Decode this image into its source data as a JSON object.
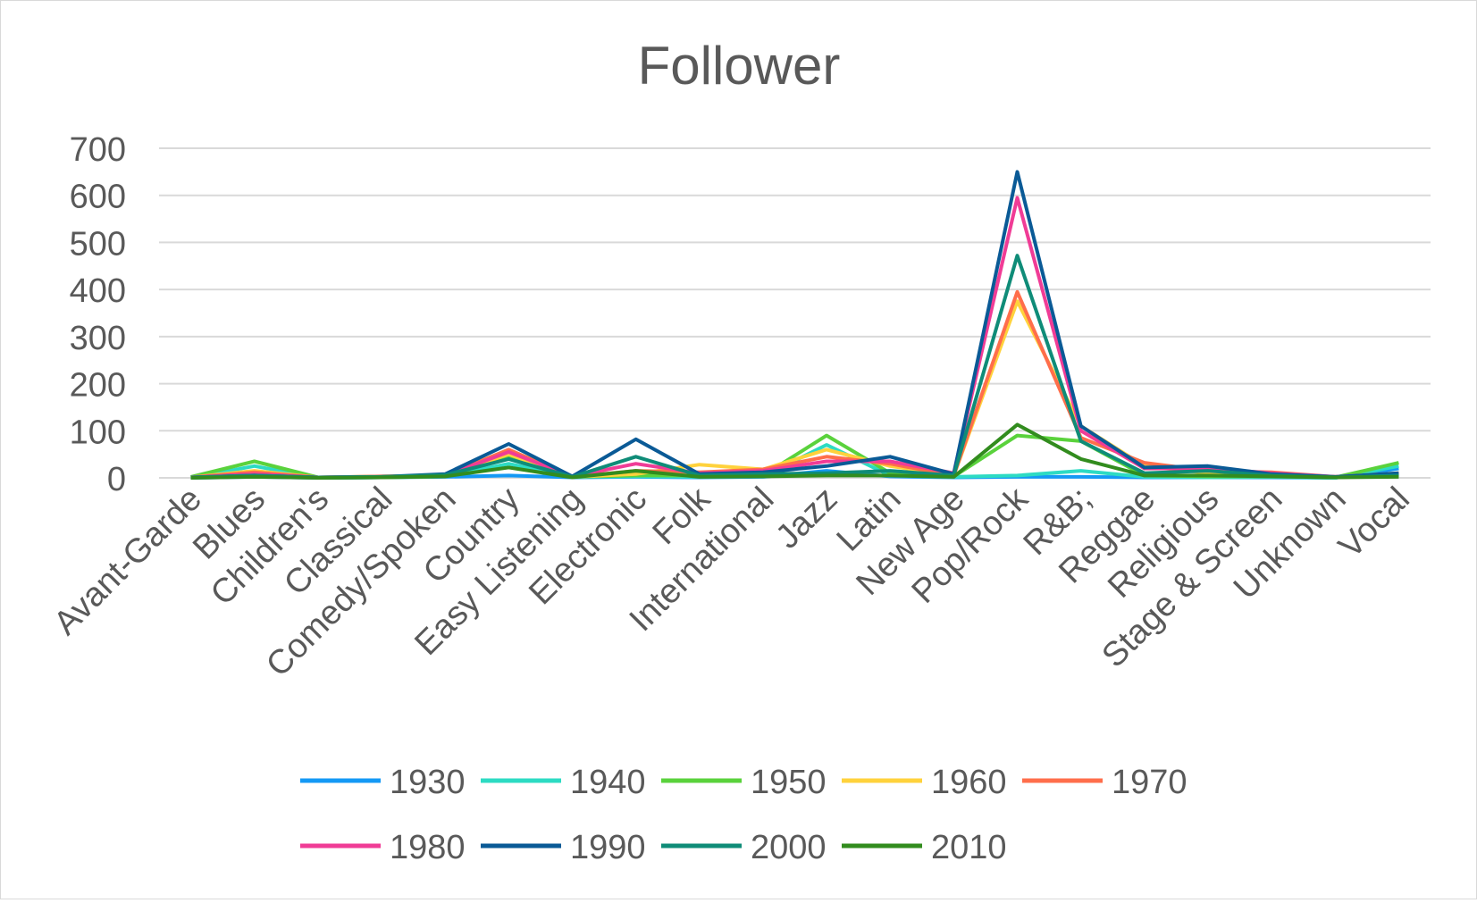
{
  "chart_data": {
    "type": "line",
    "title": "Follower",
    "xlabel": "",
    "ylabel": "",
    "ylim": [
      0,
      700
    ],
    "yticks": [
      0,
      100,
      200,
      300,
      400,
      500,
      600,
      700
    ],
    "grid": true,
    "legend_position": "bottom",
    "categories": [
      "Avant-Garde",
      "Blues",
      "Children's",
      "Classical",
      "Comedy/Spoken",
      "Country",
      "Easy Listening",
      "Electronic",
      "Folk",
      "International",
      "Jazz",
      "Latin",
      "New Age",
      "Pop/Rock",
      "R&B;",
      "Reggae",
      "Religious",
      "Stage & Screen",
      "Unknown",
      "Vocal"
    ],
    "series": [
      {
        "name": "1930",
        "color": "#1499f5",
        "values": [
          0,
          2,
          0,
          1,
          2,
          5,
          1,
          2,
          1,
          2,
          15,
          3,
          1,
          2,
          2,
          1,
          1,
          1,
          0,
          20
        ]
      },
      {
        "name": "1940",
        "color": "#2ddbc3",
        "values": [
          0,
          25,
          0,
          1,
          3,
          30,
          2,
          3,
          2,
          3,
          70,
          5,
          2,
          5,
          15,
          2,
          1,
          2,
          0,
          25
        ]
      },
      {
        "name": "1950",
        "color": "#5ad23c",
        "values": [
          2,
          35,
          1,
          1,
          3,
          45,
          2,
          5,
          5,
          5,
          90,
          10,
          3,
          90,
          78,
          5,
          3,
          3,
          1,
          32
        ]
      },
      {
        "name": "1960",
        "color": "#ffd23c",
        "values": [
          1,
          15,
          1,
          3,
          5,
          50,
          2,
          8,
          28,
          18,
          60,
          25,
          5,
          375,
          110,
          25,
          10,
          5,
          2,
          10
        ]
      },
      {
        "name": "1970",
        "color": "#ff6e4b",
        "values": [
          1,
          12,
          1,
          3,
          5,
          60,
          2,
          15,
          12,
          18,
          45,
          30,
          5,
          395,
          85,
          32,
          15,
          12,
          2,
          8
        ]
      },
      {
        "name": "1980",
        "color": "#f03c96",
        "values": [
          1,
          8,
          1,
          2,
          5,
          55,
          3,
          30,
          10,
          15,
          35,
          35,
          10,
          595,
          100,
          20,
          20,
          10,
          2,
          8
        ]
      },
      {
        "name": "1990",
        "color": "#0a5a96",
        "values": [
          1,
          5,
          1,
          2,
          8,
          72,
          3,
          82,
          8,
          12,
          25,
          45,
          8,
          650,
          110,
          22,
          25,
          8,
          2,
          10
        ]
      },
      {
        "name": "2000",
        "color": "#0f8c78",
        "values": [
          1,
          5,
          1,
          2,
          6,
          40,
          2,
          45,
          5,
          8,
          10,
          15,
          5,
          472,
          78,
          10,
          15,
          5,
          1,
          5
        ]
      },
      {
        "name": "2010",
        "color": "#328c1e",
        "values": [
          0,
          2,
          0,
          1,
          3,
          22,
          1,
          15,
          2,
          3,
          5,
          5,
          2,
          113,
          40,
          5,
          5,
          3,
          1,
          2
        ]
      }
    ]
  }
}
